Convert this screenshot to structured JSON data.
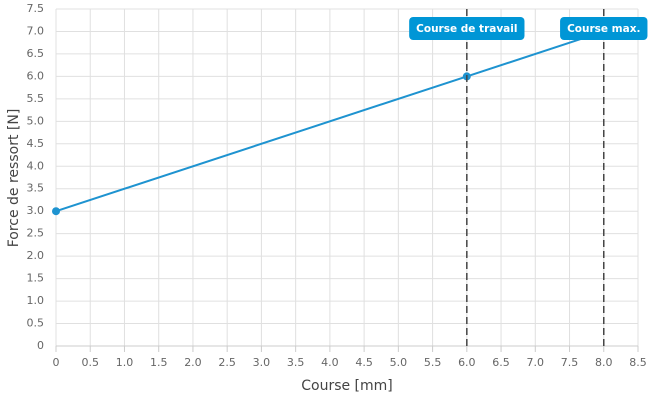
{
  "chart_data": {
    "type": "line",
    "x_label": "Course [mm]",
    "y_label": "Force de ressort [N]",
    "x": [
      0,
      6,
      8
    ],
    "series": [
      {
        "color": "#1e93d0",
        "values": [
          3,
          6,
          7
        ]
      }
    ],
    "xlim": [
      0,
      8.5
    ],
    "ylim": [
      0,
      7.5
    ],
    "xticks": [
      0,
      0.5,
      {
        "value": 1,
        "label": "1.0"
      },
      1.5,
      {
        "value": 2,
        "label": "2.0"
      },
      2.5,
      {
        "value": 3,
        "label": "3.0"
      },
      3.5,
      {
        "value": 4,
        "label": "4.0"
      },
      4.5,
      {
        "value": 5,
        "label": "5.0"
      },
      5.5,
      {
        "value": 6,
        "label": "6.0"
      },
      6.5,
      {
        "value": 7,
        "label": "7.0"
      },
      7.5,
      {
        "value": 8,
        "label": "8.0"
      },
      8.5
    ],
    "yticks": [
      0,
      0.5,
      {
        "value": 1,
        "label": "1.0"
      },
      1.5,
      {
        "value": 2,
        "label": "2.0"
      },
      2.5,
      {
        "value": 3,
        "label": "3.0"
      },
      3.5,
      {
        "value": 4,
        "label": "4.0"
      },
      4.5,
      {
        "value": 5,
        "label": "5.0"
      },
      5.5,
      {
        "value": 6,
        "label": "6.0"
      },
      6.5,
      {
        "value": 7,
        "label": "7.0"
      },
      7.5
    ],
    "grid": true,
    "annotations": [
      {
        "x": 6,
        "label": "Course de travail",
        "color": "#0096d6"
      },
      {
        "x": 8,
        "label": "Course max.",
        "color": "#0096d6"
      }
    ]
  }
}
